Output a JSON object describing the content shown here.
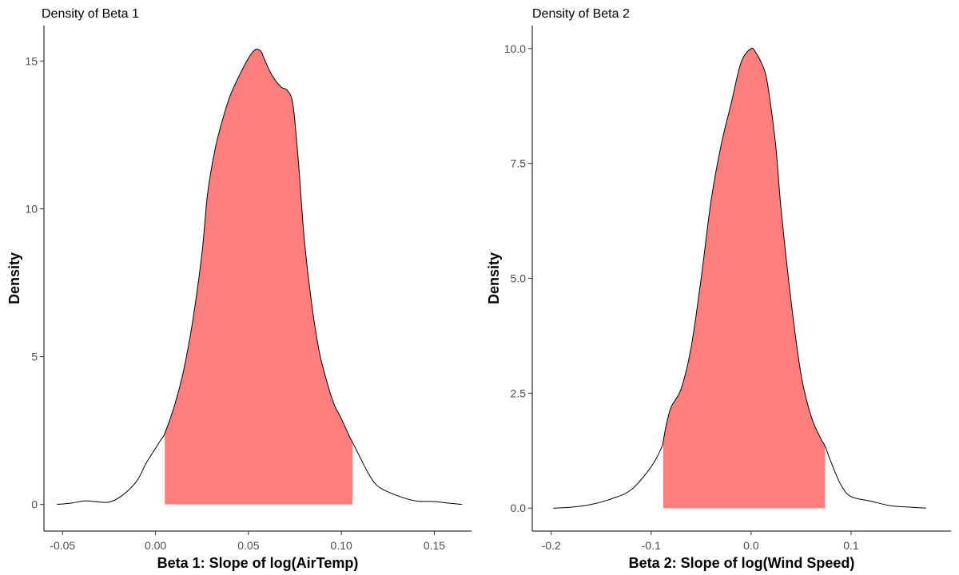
{
  "colors": {
    "shade": "#FF7F7F",
    "line": "#000000",
    "axis": "#000000",
    "tick_text": "#4d4d4d"
  },
  "chart_data": [
    {
      "type": "area",
      "title": "Density of Beta 1",
      "xlabel": "Beta 1: Slope of log(AirTemp)",
      "ylabel": "Density",
      "xlim": [
        -0.06,
        0.17
      ],
      "ylim": [
        -0.9,
        16.2
      ],
      "xticks": [
        -0.05,
        0.0,
        0.05,
        0.1,
        0.15
      ],
      "xtick_labels": [
        "-0.05",
        "0.00",
        "0.05",
        "0.10",
        "0.15"
      ],
      "yticks": [
        0,
        5,
        10,
        15
      ],
      "ytick_labels": [
        "0",
        "5",
        "10",
        "15"
      ],
      "shaded_interval": [
        0.005,
        0.106
      ],
      "series": [
        {
          "x": [
            -0.053,
            -0.045,
            -0.038,
            -0.033,
            -0.025,
            -0.018,
            -0.01,
            -0.005,
            0.0,
            0.003,
            0.005,
            0.01,
            0.015,
            0.02,
            0.025,
            0.028,
            0.032,
            0.036,
            0.04,
            0.045,
            0.05,
            0.053,
            0.055,
            0.057,
            0.059,
            0.062,
            0.065,
            0.068,
            0.071,
            0.074,
            0.077,
            0.08,
            0.084,
            0.088,
            0.092,
            0.096,
            0.1,
            0.104,
            0.106,
            0.11,
            0.115,
            0.12,
            0.13,
            0.14,
            0.15,
            0.157,
            0.165
          ],
          "y": [
            0.0,
            0.05,
            0.12,
            0.1,
            0.08,
            0.3,
            0.8,
            1.4,
            1.9,
            2.2,
            2.4,
            3.3,
            4.5,
            6.2,
            8.5,
            10.5,
            12.0,
            13.0,
            13.8,
            14.5,
            15.1,
            15.35,
            15.4,
            15.3,
            15.0,
            14.6,
            14.3,
            14.1,
            14.0,
            13.5,
            11.5,
            9.0,
            6.8,
            5.2,
            4.2,
            3.4,
            2.9,
            2.35,
            2.1,
            1.6,
            1.0,
            0.6,
            0.3,
            0.12,
            0.1,
            0.05,
            0.0
          ]
        }
      ]
    },
    {
      "type": "area",
      "title": "Density of Beta 2",
      "xlabel": "Beta 2: Slope of log(Wind Speed)",
      "ylabel": "Density",
      "xlim": [
        -0.219,
        0.2
      ],
      "ylim": [
        -0.5,
        10.5
      ],
      "xticks": [
        -0.2,
        -0.1,
        0.0,
        0.1
      ],
      "xtick_labels": [
        "-0.2",
        "-0.1",
        "0.0",
        "0.1"
      ],
      "yticks": [
        0.0,
        2.5,
        5.0,
        7.5,
        10.0
      ],
      "ytick_labels": [
        "0.0",
        "2.5",
        "5.0",
        "7.5",
        "10.0"
      ],
      "shaded_interval": [
        -0.088,
        0.074
      ],
      "series": [
        {
          "x": [
            -0.198,
            -0.18,
            -0.16,
            -0.14,
            -0.12,
            -0.1,
            -0.09,
            -0.088,
            -0.085,
            -0.08,
            -0.07,
            -0.06,
            -0.05,
            -0.04,
            -0.03,
            -0.02,
            -0.01,
            0.0,
            0.005,
            0.01,
            0.015,
            0.02,
            0.025,
            0.03,
            0.04,
            0.05,
            0.06,
            0.07,
            0.074,
            0.08,
            0.09,
            0.1,
            0.12,
            0.14,
            0.16,
            0.175
          ],
          "y": [
            0.0,
            0.02,
            0.08,
            0.2,
            0.4,
            0.9,
            1.3,
            1.45,
            1.8,
            2.2,
            2.6,
            3.5,
            5.0,
            6.7,
            7.9,
            8.8,
            9.7,
            10.0,
            9.9,
            9.7,
            9.4,
            8.7,
            7.8,
            6.5,
            4.5,
            2.9,
            2.0,
            1.5,
            1.35,
            1.0,
            0.5,
            0.25,
            0.15,
            0.05,
            0.02,
            0.0
          ]
        }
      ]
    }
  ]
}
